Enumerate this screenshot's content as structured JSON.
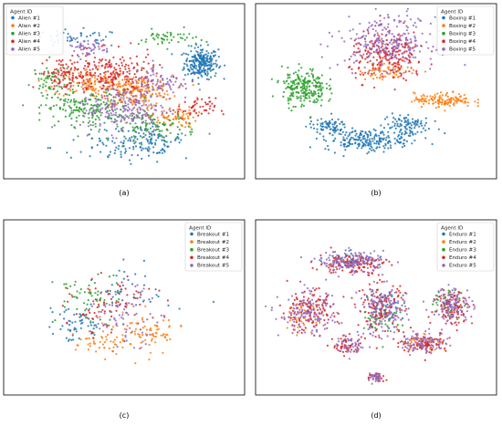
{
  "chart_data": [
    {
      "type": "scatter",
      "caption": "(a)",
      "legend": {
        "title": "Agent ID",
        "placement": "top-left"
      },
      "series": [
        {
          "name": "Alien #1",
          "color": "#1f77b4",
          "clusters": [
            [
              0.82,
              0.66,
              0.07,
              0.09,
              240
            ],
            [
              0.6,
              0.22,
              0.14,
              0.08,
              90
            ],
            [
              0.5,
              0.18,
              0.3,
              0.1,
              70
            ],
            [
              0.3,
              0.8,
              0.2,
              0.05,
              50
            ]
          ]
        },
        {
          "name": "Alien #2",
          "color": "#ff7f0e",
          "clusters": [
            [
              0.55,
              0.5,
              0.15,
              0.09,
              220
            ],
            [
              0.35,
              0.55,
              0.14,
              0.08,
              110
            ],
            [
              0.7,
              0.35,
              0.1,
              0.06,
              70
            ]
          ]
        },
        {
          "name": "Alien #3",
          "color": "#2ca02c",
          "clusters": [
            [
              0.35,
              0.4,
              0.18,
              0.1,
              170
            ],
            [
              0.62,
              0.3,
              0.18,
              0.08,
              100
            ],
            [
              0.2,
              0.55,
              0.08,
              0.12,
              60
            ],
            [
              0.68,
              0.8,
              0.12,
              0.05,
              50
            ]
          ]
        },
        {
          "name": "Alien #4",
          "color": "#d62728",
          "clusters": [
            [
              0.45,
              0.6,
              0.18,
              0.12,
              200
            ],
            [
              0.25,
              0.6,
              0.1,
              0.1,
              90
            ],
            [
              0.8,
              0.4,
              0.08,
              0.06,
              50
            ]
          ]
        },
        {
          "name": "Alien #5",
          "color": "#9467bd",
          "clusters": [
            [
              0.5,
              0.4,
              0.18,
              0.14,
              220
            ],
            [
              0.65,
              0.55,
              0.12,
              0.1,
              90
            ],
            [
              0.35,
              0.75,
              0.1,
              0.05,
              50
            ]
          ]
        }
      ]
    },
    {
      "type": "scatter",
      "caption": "(b)",
      "legend": {
        "title": "Agent ID",
        "placement": "top-right"
      },
      "series": [
        {
          "name": "Boxing #1",
          "color": "#1f77b4",
          "clusters": [
            [
              0.45,
              0.22,
              0.16,
              0.06,
              200
            ],
            [
              0.62,
              0.3,
              0.1,
              0.08,
              110
            ],
            [
              0.3,
              0.3,
              0.08,
              0.04,
              70
            ]
          ]
        },
        {
          "name": "Boxing #2",
          "color": "#ff7f0e",
          "clusters": [
            [
              0.78,
              0.45,
              0.12,
              0.04,
              140
            ],
            [
              0.55,
              0.62,
              0.12,
              0.06,
              70
            ]
          ]
        },
        {
          "name": "Boxing #3",
          "color": "#2ca02c",
          "clusters": [
            [
              0.2,
              0.52,
              0.09,
              0.11,
              230
            ]
          ]
        },
        {
          "name": "Boxing #4",
          "color": "#d62728",
          "clusters": [
            [
              0.55,
              0.7,
              0.16,
              0.14,
              220
            ]
          ]
        },
        {
          "name": "Boxing #5",
          "color": "#9467bd",
          "clusters": [
            [
              0.55,
              0.78,
              0.2,
              0.15,
              260
            ]
          ]
        }
      ]
    },
    {
      "type": "scatter",
      "caption": "(c)",
      "legend": {
        "title": "Agent ID",
        "placement": "top-right"
      },
      "series": [
        {
          "name": "Breakout #1",
          "color": "#1f77b4",
          "clusters": [
            [
              0.3,
              0.4,
              0.12,
              0.1,
              60
            ],
            [
              0.55,
              0.6,
              0.15,
              0.15,
              40
            ]
          ]
        },
        {
          "name": "Breakout #2",
          "color": "#ff7f0e",
          "clusters": [
            [
              0.58,
              0.35,
              0.16,
              0.12,
              80
            ],
            [
              0.4,
              0.3,
              0.1,
              0.08,
              40
            ]
          ]
        },
        {
          "name": "Breakout #3",
          "color": "#2ca02c",
          "clusters": [
            [
              0.35,
              0.55,
              0.14,
              0.14,
              60
            ]
          ]
        },
        {
          "name": "Breakout #4",
          "color": "#d62728",
          "clusters": [
            [
              0.45,
              0.5,
              0.18,
              0.16,
              80
            ]
          ]
        },
        {
          "name": "Breakout #5",
          "color": "#9467bd",
          "clusters": [
            [
              0.5,
              0.45,
              0.16,
              0.16,
              70
            ]
          ]
        }
      ]
    },
    {
      "type": "scatter",
      "caption": "(d)",
      "legend": {
        "title": "Agent ID",
        "placement": "top-right"
      },
      "series": [
        {
          "name": "Enduro #1",
          "color": "#1f77b4",
          "clusters": [
            [
              0.4,
              0.78,
              0.1,
              0.05,
              40
            ],
            [
              0.55,
              0.5,
              0.08,
              0.1,
              40
            ]
          ]
        },
        {
          "name": "Enduro #2",
          "color": "#ff7f0e",
          "clusters": [
            [
              0.2,
              0.45,
              0.09,
              0.08,
              50
            ],
            [
              0.7,
              0.3,
              0.08,
              0.05,
              40
            ]
          ]
        },
        {
          "name": "Enduro #3",
          "color": "#2ca02c",
          "clusters": [
            [
              0.52,
              0.45,
              0.08,
              0.12,
              50
            ],
            [
              0.8,
              0.52,
              0.07,
              0.08,
              40
            ]
          ]
        },
        {
          "name": "Enduro #4",
          "color": "#d62728",
          "clusters": [
            [
              0.4,
              0.75,
              0.14,
              0.06,
              120
            ],
            [
              0.22,
              0.48,
              0.12,
              0.12,
              120
            ],
            [
              0.52,
              0.5,
              0.1,
              0.14,
              120
            ],
            [
              0.82,
              0.5,
              0.08,
              0.1,
              100
            ],
            [
              0.7,
              0.3,
              0.1,
              0.06,
              90
            ],
            [
              0.38,
              0.28,
              0.06,
              0.05,
              50
            ],
            [
              0.5,
              0.1,
              0.04,
              0.03,
              30
            ]
          ]
        },
        {
          "name": "Enduro #5",
          "color": "#9467bd",
          "clusters": [
            [
              0.4,
              0.76,
              0.14,
              0.06,
              140
            ],
            [
              0.22,
              0.46,
              0.12,
              0.12,
              140
            ],
            [
              0.53,
              0.48,
              0.1,
              0.14,
              140
            ],
            [
              0.82,
              0.52,
              0.08,
              0.1,
              110
            ],
            [
              0.7,
              0.3,
              0.1,
              0.06,
              90
            ],
            [
              0.4,
              0.28,
              0.06,
              0.05,
              50
            ],
            [
              0.5,
              0.1,
              0.04,
              0.03,
              30
            ]
          ]
        }
      ]
    }
  ]
}
